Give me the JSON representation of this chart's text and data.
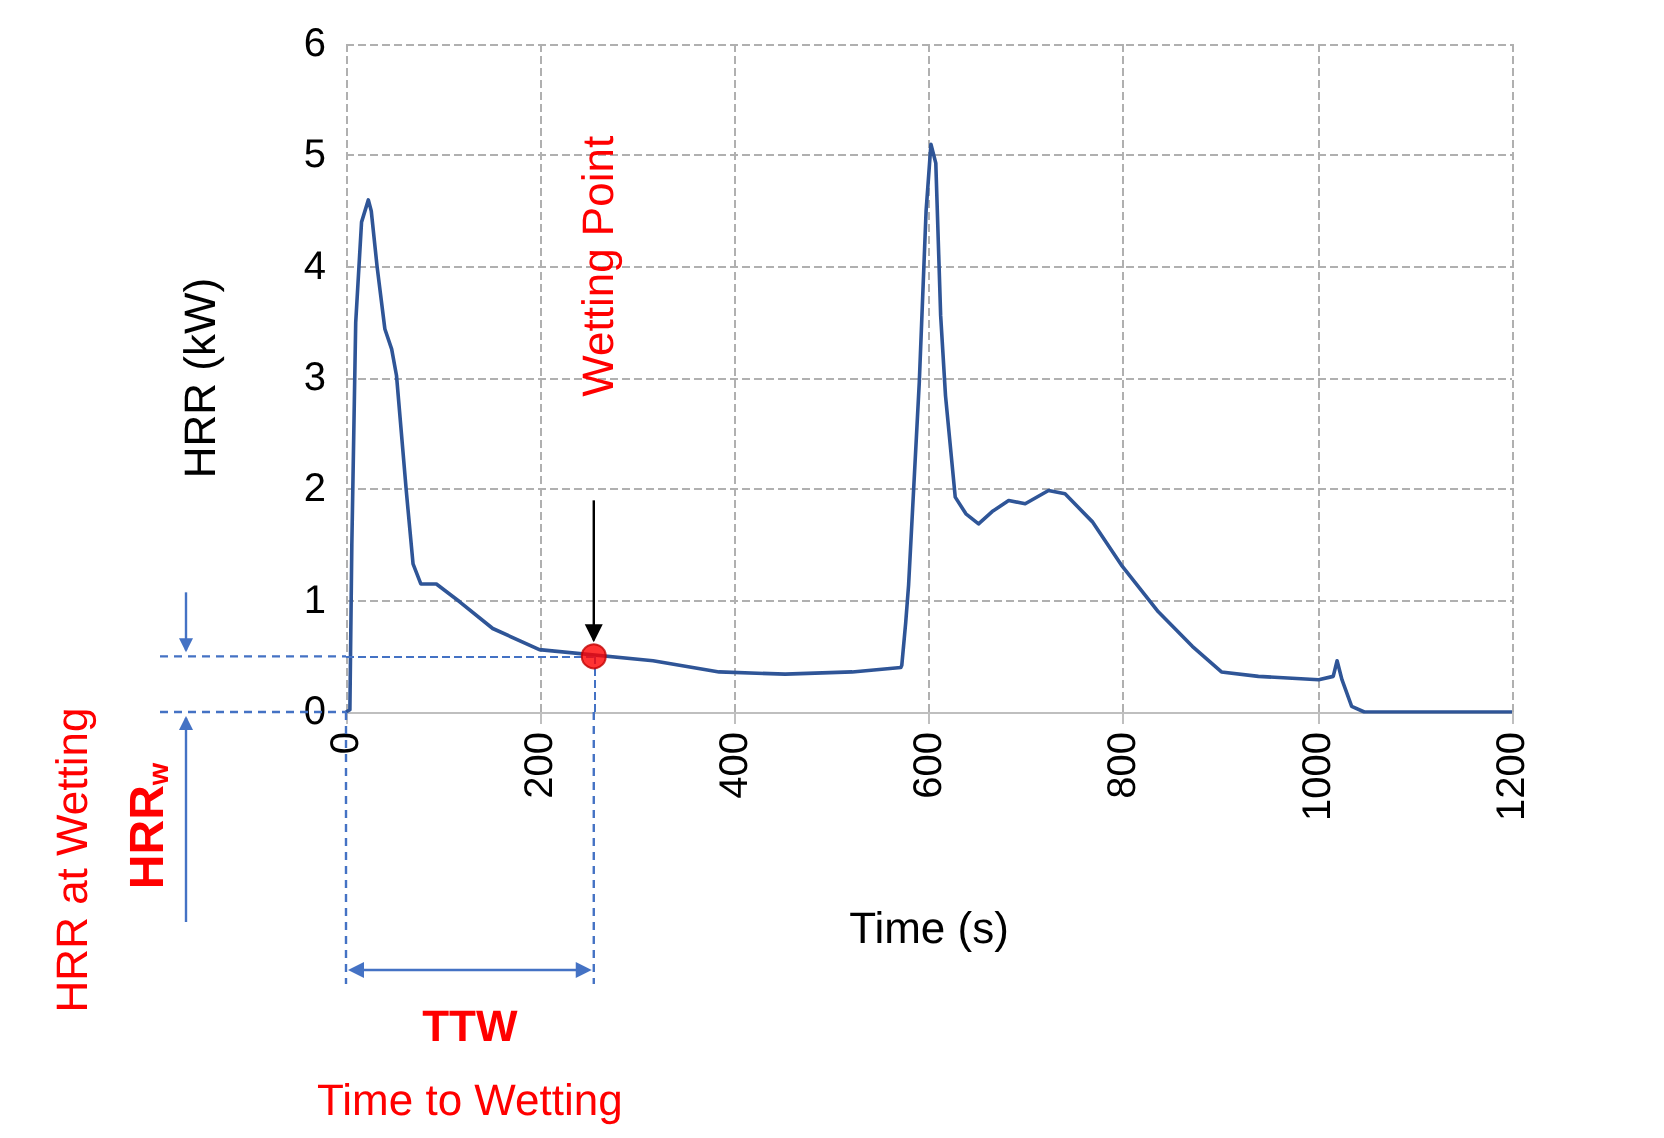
{
  "chart_data": {
    "type": "line",
    "xlabel": "Time (s)",
    "ylabel": "HRR (kW)",
    "xlim": [
      0,
      1200
    ],
    "xticks": [
      0,
      200,
      400,
      600,
      800,
      1000,
      1200
    ],
    "ylim": [
      0,
      6
    ],
    "yticks": [
      0,
      1,
      2,
      3,
      4,
      5,
      6
    ],
    "grid": true,
    "line_style": "solid",
    "series": [
      {
        "marker": "none",
        "color": "#2f5597",
        "x": [
          0,
          4,
          6,
          10,
          16,
          23,
          26,
          32,
          40,
          47,
          52,
          62,
          69,
          77,
          93,
          117,
          151,
          199,
          316,
          384,
          452,
          521,
          571,
          572,
          576,
          579,
          590,
          597,
          602,
          607,
          612,
          617,
          627,
          638,
          651,
          665,
          682,
          699,
          723,
          740,
          768,
          798,
          836,
          871,
          901,
          939,
          1001,
          1016,
          1020,
          1025,
          1035,
          1048,
          1100,
          1200
        ],
        "values": [
          0,
          0.02,
          1.5,
          3.5,
          4.4,
          4.6,
          4.5,
          4.0,
          3.44,
          3.26,
          3.02,
          1.99,
          1.33,
          1.15,
          1.15,
          0.99,
          0.75,
          0.56,
          0.46,
          0.36,
          0.34,
          0.36,
          0.4,
          0.42,
          0.8,
          1.14,
          2.96,
          4.5,
          5.1,
          4.93,
          3.56,
          2.84,
          1.93,
          1.78,
          1.69,
          1.8,
          1.9,
          1.87,
          1.99,
          1.96,
          1.71,
          1.32,
          0.9,
          0.59,
          0.36,
          0.32,
          0.29,
          0.32,
          0.46,
          0.29,
          0.05,
          0,
          0,
          0
        ]
      },
      {
        "type": "scatter",
        "marker": "circle",
        "color": "#ff0000",
        "x": [
          255
        ],
        "values": [
          0.5
        ]
      }
    ],
    "ref_lines": [
      {
        "axis": "y",
        "value": 0.5,
        "color": "#4472c4",
        "line_style": "dashed"
      },
      {
        "axis": "x",
        "value": 255,
        "color": "#4472c4",
        "line_style": "dashed"
      }
    ],
    "annotations": [
      "Wetting Point",
      "HRR at Wetting",
      "HRR$_{w}$",
      "TTW",
      "Time to Wetting"
    ]
  }
}
